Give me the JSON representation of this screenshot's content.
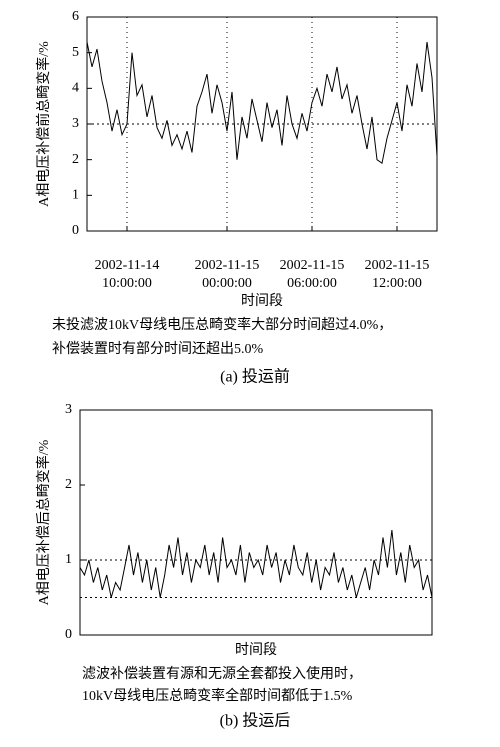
{
  "chart_data": [
    {
      "type": "line",
      "y_label": "A相电压补偿前总畸变率/%",
      "x_label": "时间段",
      "caption": [
        "未投滤波10kV母线电压总畸变率大部分时间超过4.0%，",
        "补偿装置时有部分时间还超出5.0%"
      ],
      "subcaption": "(a) 投运前",
      "color": "#000000",
      "values": [
        5.3,
        4.6,
        5.1,
        4.2,
        3.6,
        2.8,
        3.4,
        2.7,
        3.0,
        5.0,
        3.8,
        4.1,
        3.2,
        3.8,
        2.9,
        2.6,
        3.1,
        2.4,
        2.7,
        2.3,
        2.8,
        2.2,
        3.5,
        3.9,
        4.4,
        3.3,
        4.1,
        3.6,
        2.8,
        3.9,
        2.0,
        3.2,
        2.6,
        3.7,
        3.1,
        2.5,
        3.6,
        2.9,
        3.4,
        2.4,
        3.8,
        3.0,
        2.6,
        3.3,
        2.8,
        3.6,
        4.0,
        3.5,
        4.4,
        3.9,
        4.6,
        3.7,
        4.1,
        3.3,
        3.8,
        3.0,
        2.3,
        3.2,
        2.0,
        1.9,
        2.6,
        3.1,
        3.6,
        2.8,
        4.1,
        3.5,
        4.7,
        3.9,
        5.3,
        4.3,
        2.1
      ],
      "xlim": [
        0,
        70
      ],
      "xticks": [
        {
          "value": 8,
          "label": [
            "2002-11-14",
            "10:00:00"
          ]
        },
        {
          "value": 28,
          "label": [
            "2002-11-15",
            "00:00:00"
          ]
        },
        {
          "value": 45,
          "label": [
            "2002-11-15",
            "06:00:00"
          ]
        },
        {
          "value": 62,
          "label": [
            "2002-11-15",
            "12:00:00"
          ]
        }
      ],
      "ylim": [
        0,
        6
      ],
      "yticks": [
        0,
        1,
        2,
        3,
        4,
        5,
        6
      ],
      "ref_y": [
        3
      ]
    },
    {
      "type": "line",
      "y_label": "A相电压补偿后总畸变率/%",
      "x_label": "时间段",
      "caption": [
        "滤波补偿装置有源和无源全套都投入使用时，",
        "10kV母线电压总畸变率全部时间都低于1.5%"
      ],
      "subcaption": "(b) 投运后",
      "color": "#000000",
      "values": [
        0.9,
        0.8,
        1.0,
        0.7,
        0.9,
        0.6,
        0.8,
        0.5,
        0.7,
        0.6,
        0.9,
        1.2,
        0.8,
        1.1,
        0.7,
        1.0,
        0.6,
        0.9,
        0.5,
        0.8,
        1.2,
        0.9,
        1.3,
        0.8,
        1.1,
        0.7,
        1.0,
        0.9,
        1.2,
        0.8,
        1.1,
        0.7,
        1.3,
        0.9,
        1.0,
        0.8,
        1.2,
        0.7,
        1.1,
        0.9,
        1.0,
        0.8,
        1.2,
        0.9,
        1.1,
        0.7,
        1.0,
        0.8,
        1.2,
        0.9,
        0.8,
        1.1,
        0.7,
        1.0,
        0.6,
        0.9,
        0.8,
        1.1,
        0.7,
        0.9,
        0.6,
        0.8,
        0.5,
        0.7,
        0.9,
        0.6,
        1.0,
        0.8,
        1.3,
        0.9,
        1.4,
        0.8,
        1.1,
        0.7,
        1.2,
        0.9,
        1.0,
        0.6,
        0.8,
        0.5
      ],
      "xlim": [
        0,
        79
      ],
      "ylim": [
        0,
        3
      ],
      "yticks": [
        0,
        1,
        2,
        3
      ],
      "ref_y": [
        0.5,
        1
      ]
    }
  ]
}
